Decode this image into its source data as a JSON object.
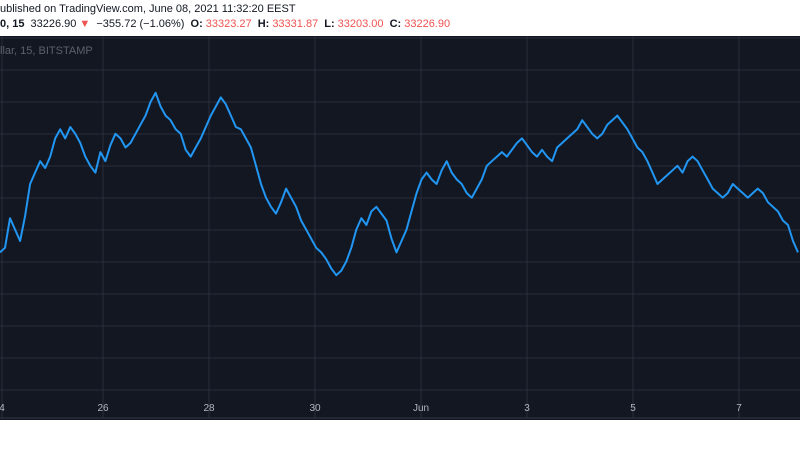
{
  "header": {
    "published": "ublished on TradingView.com, June 08, 2021 11:32:20 EEST",
    "symbol": "0, 15",
    "last": "33226.90",
    "arrow": "▼",
    "change": "−355.72 (−1.06%)",
    "open_label": "O:",
    "open": "33323.27",
    "high_label": "H:",
    "high": "33331.87",
    "low_label": "L:",
    "low": "33203.00",
    "close_label": "C:",
    "close": "33226.90"
  },
  "chart_subtitle": "llar, 15, BITSTAMP",
  "colors": {
    "background": "#131722",
    "line": "#2196f3",
    "grid": "#2a2e39",
    "down": "#ef5350"
  },
  "chart_data": {
    "type": "line",
    "title": "",
    "xlabel": "",
    "ylabel": "",
    "x_ticks": [
      "4",
      "26",
      "28",
      "30",
      "Jun",
      "3",
      "5",
      "7"
    ],
    "series": [
      {
        "values": [
          0.2,
          0.22,
          0.35,
          0.3,
          0.25,
          0.36,
          0.5,
          0.55,
          0.6,
          0.57,
          0.62,
          0.7,
          0.74,
          0.7,
          0.75,
          0.72,
          0.68,
          0.62,
          0.58,
          0.55,
          0.64,
          0.6,
          0.67,
          0.72,
          0.7,
          0.66,
          0.68,
          0.72,
          0.76,
          0.8,
          0.86,
          0.9,
          0.84,
          0.8,
          0.78,
          0.74,
          0.72,
          0.65,
          0.62,
          0.66,
          0.7,
          0.75,
          0.8,
          0.84,
          0.88,
          0.85,
          0.8,
          0.75,
          0.74,
          0.7,
          0.66,
          0.58,
          0.5,
          0.44,
          0.4,
          0.37,
          0.42,
          0.48,
          0.44,
          0.4,
          0.34,
          0.3,
          0.26,
          0.22,
          0.2,
          0.17,
          0.13,
          0.1,
          0.12,
          0.16,
          0.22,
          0.3,
          0.35,
          0.32,
          0.38,
          0.4,
          0.37,
          0.34,
          0.26,
          0.2,
          0.25,
          0.3,
          0.38,
          0.46,
          0.52,
          0.55,
          0.52,
          0.5,
          0.56,
          0.6,
          0.55,
          0.52,
          0.5,
          0.46,
          0.44,
          0.48,
          0.52,
          0.58,
          0.6,
          0.62,
          0.64,
          0.62,
          0.65,
          0.68,
          0.7,
          0.67,
          0.64,
          0.62,
          0.65,
          0.62,
          0.6,
          0.66,
          0.68,
          0.7,
          0.72,
          0.74,
          0.78,
          0.75,
          0.72,
          0.7,
          0.72,
          0.76,
          0.78,
          0.8,
          0.77,
          0.74,
          0.7,
          0.66,
          0.64,
          0.6,
          0.55,
          0.5,
          0.52,
          0.54,
          0.56,
          0.58,
          0.55,
          0.6,
          0.62,
          0.6,
          0.56,
          0.52,
          0.48,
          0.46,
          0.44,
          0.46,
          0.5,
          0.48,
          0.46,
          0.44,
          0.46,
          0.48,
          0.46,
          0.42,
          0.4,
          0.38,
          0.34,
          0.32,
          0.25,
          0.2
        ]
      }
    ],
    "ylim": [
      0,
      1
    ]
  }
}
